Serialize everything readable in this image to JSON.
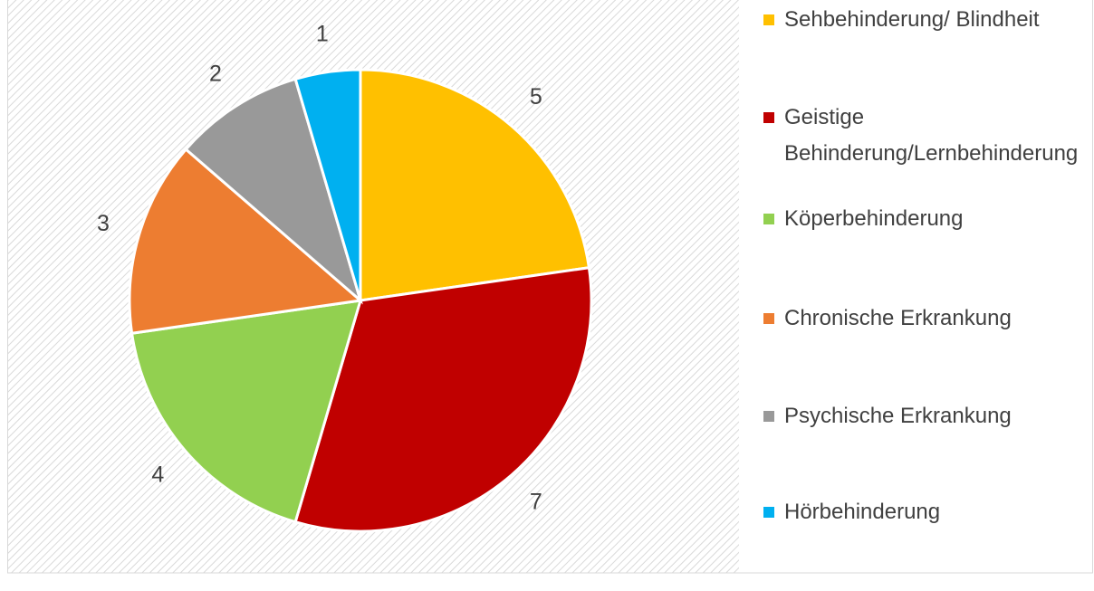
{
  "chart_data": {
    "type": "pie",
    "categories": [
      "Sehbehinderung/ Blindheit",
      "Geistige Behinderung/Lernbehinderung",
      "Köperbehinderung",
      "Chronische Erkrankung",
      "Psychische Erkrankung",
      "Hörbehinderung"
    ],
    "values": [
      5,
      7,
      4,
      3,
      2,
      1
    ],
    "colors": [
      "#FFC000",
      "#C00000",
      "#92D050",
      "#ED7D31",
      "#999999",
      "#00B0F0"
    ],
    "legend": "right"
  }
}
